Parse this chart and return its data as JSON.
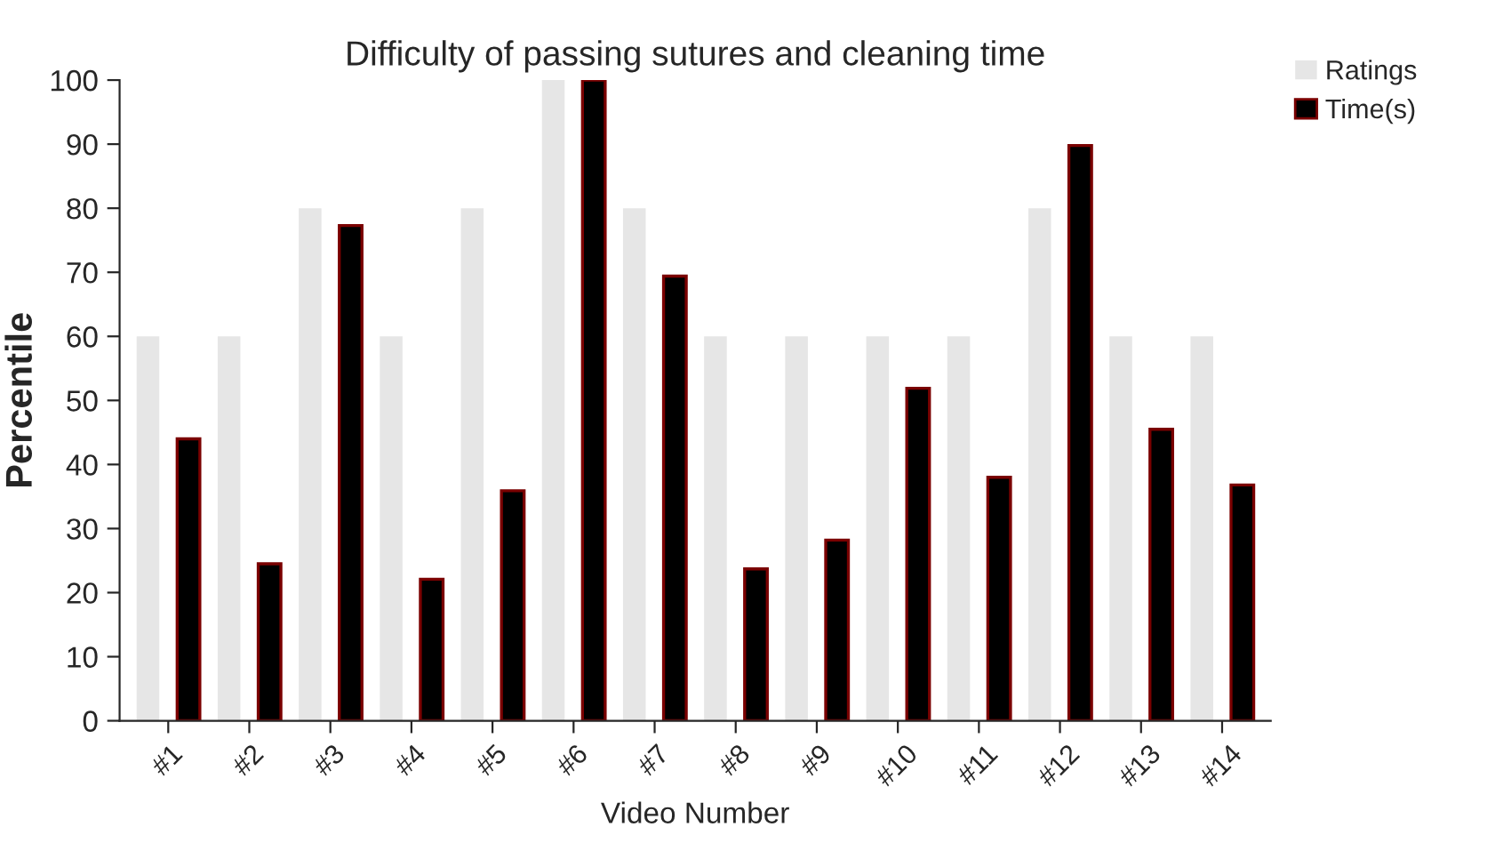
{
  "chart_data": {
    "type": "bar",
    "title": "Difficulty of passing sutures and cleaning time",
    "xlabel": "Video Number",
    "ylabel": "Percentile",
    "categories": [
      "#1",
      "#2",
      "#3",
      "#4",
      "#5",
      "#6",
      "#7",
      "#8",
      "#9",
      "#10",
      "#11",
      "#12",
      "#13",
      "#14"
    ],
    "series": [
      {
        "name": "Ratings",
        "color": "#e6e6e6",
        "values": [
          60,
          60,
          80,
          60,
          80,
          100,
          80,
          60,
          60,
          60,
          60,
          80,
          60,
          60
        ]
      },
      {
        "name": "Time(s)",
        "color": "#000000",
        "values": [
          44,
          24.5,
          77.3,
          22.1,
          35.9,
          100,
          69.4,
          23.7,
          28.2,
          51.9,
          38,
          89.8,
          45.5,
          36.8
        ]
      }
    ],
    "ylim": [
      0,
      100
    ],
    "yticks": [
      0,
      10,
      20,
      30,
      40,
      50,
      60,
      70,
      80,
      90,
      100
    ],
    "grid": false,
    "legend": "top right"
  }
}
